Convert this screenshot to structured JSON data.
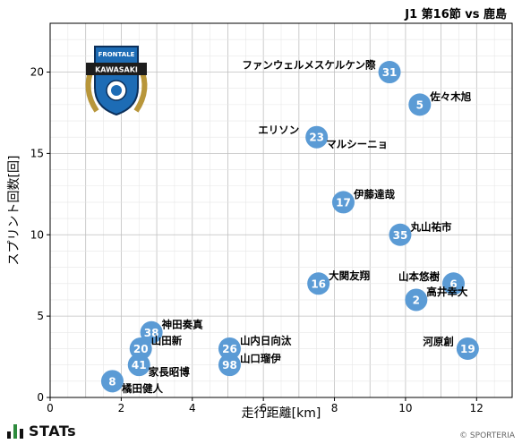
{
  "header": {
    "title": "J1 第16節 vs 鹿島"
  },
  "footer": {
    "brand": "STATs",
    "copyright": "© SPORTERIA"
  },
  "badge": {
    "team_top": "FRONTALE",
    "team_name": "KAWASAKI"
  },
  "colors": {
    "point": "#5b9bd5",
    "point_text": "#ffffff",
    "grid_major": "#bfbfbf",
    "grid_minor": "#e6e6e6"
  },
  "chart_data": {
    "type": "scatter",
    "title": "",
    "xlabel": "走行距離[km]",
    "ylabel": "スプリント回数[回]",
    "xlim": [
      0,
      13
    ],
    "ylim": [
      0,
      23
    ],
    "xticks": [
      0,
      2,
      4,
      6,
      8,
      10,
      12
    ],
    "yticks": [
      0,
      5,
      10,
      15,
      20
    ],
    "grid": true,
    "points": [
      {
        "number": "31",
        "name": "ファンウェルメスケルケン際",
        "x": 9.55,
        "y": 20,
        "label_side": "left"
      },
      {
        "number": "5",
        "name": "佐々木旭",
        "x": 10.4,
        "y": 18,
        "label_side": "right"
      },
      {
        "number": "23",
        "name": "マルシーニョ",
        "x": 7.5,
        "y": 16,
        "label_side": "right-below"
      },
      {
        "number": "",
        "name": "エリソン",
        "x": 7.4,
        "y": 16,
        "label_side": "left"
      },
      {
        "number": "17",
        "name": "伊藤達哉",
        "x": 8.25,
        "y": 12,
        "label_side": "right"
      },
      {
        "number": "35",
        "name": "丸山祐市",
        "x": 9.85,
        "y": 10,
        "label_side": "right"
      },
      {
        "number": "16",
        "name": "大関友翔",
        "x": 7.55,
        "y": 7,
        "label_side": "right"
      },
      {
        "number": "6",
        "name": "山本悠樹",
        "x": 11.35,
        "y": 7,
        "label_side": "left"
      },
      {
        "number": "2",
        "name": "高井幸大",
        "x": 10.3,
        "y": 6,
        "label_side": "right"
      },
      {
        "number": "19",
        "name": "河原創",
        "x": 11.75,
        "y": 3,
        "label_side": "left"
      },
      {
        "number": "38",
        "name": "神田奏真",
        "x": 2.85,
        "y": 4,
        "label_side": "right"
      },
      {
        "number": "20",
        "name": "山田新",
        "x": 2.55,
        "y": 3,
        "label_side": "right"
      },
      {
        "number": "41",
        "name": "家長昭博",
        "x": 2.5,
        "y": 2,
        "label_side": "right-below"
      },
      {
        "number": "26",
        "name": "山内日向汰",
        "x": 5.05,
        "y": 3,
        "label_side": "right"
      },
      {
        "number": "98",
        "name": "山口瑠伊",
        "x": 5.05,
        "y": 2,
        "label_side": "right-above"
      },
      {
        "number": "8",
        "name": "橘田健人",
        "x": 1.75,
        "y": 1,
        "label_side": "right-below"
      }
    ]
  }
}
